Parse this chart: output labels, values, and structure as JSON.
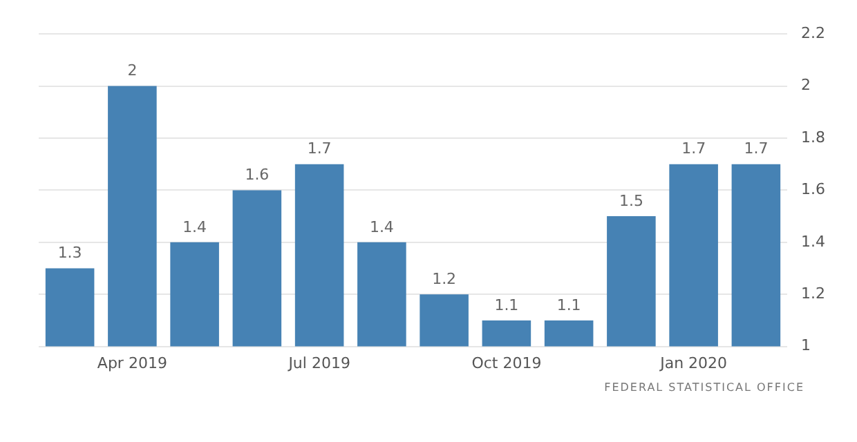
{
  "chart_data": {
    "type": "bar",
    "categories": [
      null,
      "Apr 2019",
      null,
      null,
      "Jul 2019",
      null,
      null,
      "Oct 2019",
      null,
      null,
      "Jan 2020",
      null
    ],
    "values": [
      1.3,
      2,
      1.4,
      1.6,
      1.7,
      1.4,
      1.2,
      1.1,
      1.1,
      1.5,
      1.7,
      1.7
    ],
    "color": "#4682b4",
    "ylim": [
      1,
      2.2
    ],
    "yticks": [
      1,
      1.2,
      1.4,
      1.6,
      1.8,
      2,
      2.2
    ],
    "grid": "y",
    "data_labels": true,
    "annotations": [
      "FEDERAL STATISTICAL OFFICE"
    ]
  }
}
